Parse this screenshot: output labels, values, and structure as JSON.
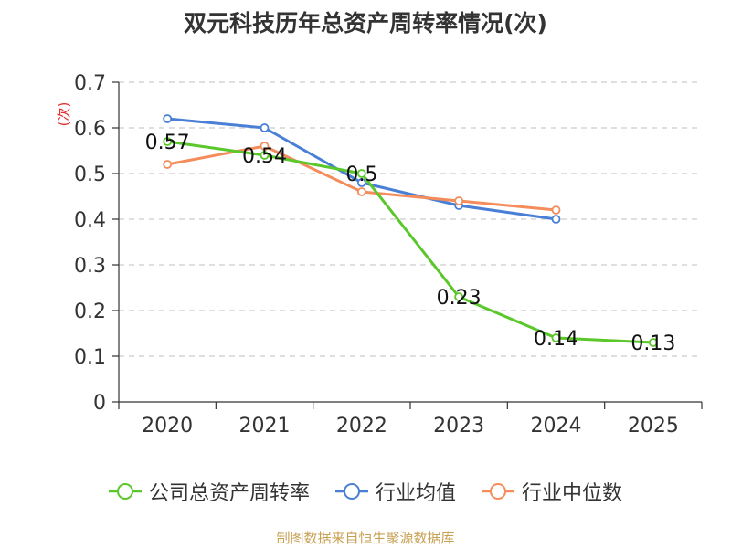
{
  "chart_data": {
    "type": "line",
    "title": "双元科技历年总资产周转率情况(次)",
    "ylabel": "(次)",
    "xlabel": "",
    "ylim": [
      0,
      0.7
    ],
    "yticks": [
      "0",
      "0.1",
      "0.2",
      "0.3",
      "0.4",
      "0.5",
      "0.6",
      "0.7"
    ],
    "categories": [
      "2020",
      "2021",
      "2022",
      "2023",
      "2024",
      "2025"
    ],
    "grid": true,
    "legend_position": "bottom",
    "series": [
      {
        "name": "公司总资产周转率",
        "color": "#5ac72a",
        "show_labels": true,
        "values": [
          0.57,
          0.54,
          0.5,
          0.23,
          0.14,
          0.13
        ],
        "labels": [
          "0.57",
          "0.54",
          "0.5",
          "0.23",
          "0.14",
          "0.13"
        ]
      },
      {
        "name": "行业均值",
        "color": "#4a7fd6",
        "show_labels": false,
        "values": [
          0.62,
          0.6,
          0.48,
          0.43,
          0.4,
          null
        ]
      },
      {
        "name": "行业中位数",
        "color": "#f48c5c",
        "show_labels": false,
        "values": [
          0.52,
          0.56,
          0.46,
          0.44,
          0.42,
          null
        ]
      }
    ]
  },
  "source": "制图数据来自恒生聚源数据库"
}
